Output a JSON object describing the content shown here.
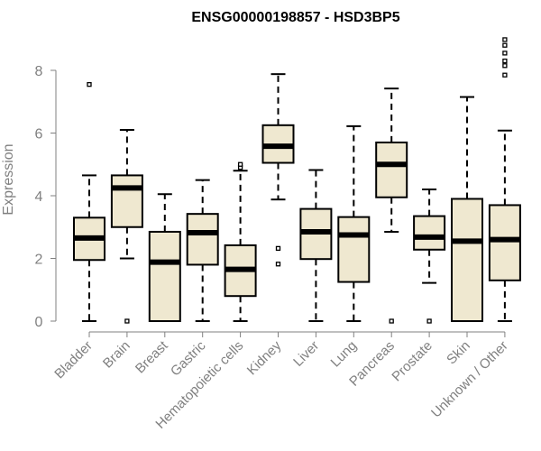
{
  "chart_data": {
    "type": "boxplot",
    "title": "ENSG00000198857 - HSD3BP5",
    "xlabel": "",
    "ylabel": "Expression",
    "ylim": [
      0,
      9
    ],
    "yticks": [
      0,
      2,
      4,
      6,
      8
    ],
    "grid": false,
    "box_fill": "#efe8d0",
    "categories": [
      "Bladder",
      "Brain",
      "Breast",
      "Gastric",
      "Hematopoietic cells",
      "Kidney",
      "Liver",
      "Lung",
      "Pancreas",
      "Prostate",
      "Skin",
      "Unknown / Other"
    ],
    "boxes": [
      {
        "name": "Bladder",
        "whisker_low": 0.0,
        "q1": 1.95,
        "median": 2.65,
        "q3": 3.3,
        "whisker_high": 4.65,
        "outliers": [
          7.55
        ]
      },
      {
        "name": "Brain",
        "whisker_low": 2.0,
        "q1": 3.0,
        "median": 4.25,
        "q3": 4.65,
        "whisker_high": 6.1,
        "outliers": [
          0.0
        ]
      },
      {
        "name": "Breast",
        "whisker_low": 0.0,
        "q1": 0.0,
        "median": 1.88,
        "q3": 2.85,
        "whisker_high": 4.05,
        "outliers": []
      },
      {
        "name": "Gastric",
        "whisker_low": 0.0,
        "q1": 1.8,
        "median": 2.82,
        "q3": 3.42,
        "whisker_high": 4.5,
        "outliers": []
      },
      {
        "name": "Hematopoietic cells",
        "whisker_low": 0.0,
        "q1": 0.8,
        "median": 1.65,
        "q3": 2.42,
        "whisker_high": 4.8,
        "outliers": [
          4.9,
          5.0
        ]
      },
      {
        "name": "Kidney",
        "whisker_low": 3.88,
        "q1": 5.05,
        "median": 5.58,
        "q3": 6.25,
        "whisker_high": 7.88,
        "outliers": [
          2.32,
          1.82
        ]
      },
      {
        "name": "Liver",
        "whisker_low": 0.0,
        "q1": 1.98,
        "median": 2.85,
        "q3": 3.58,
        "whisker_high": 4.82,
        "outliers": []
      },
      {
        "name": "Lung",
        "whisker_low": 0.0,
        "q1": 1.25,
        "median": 2.75,
        "q3": 3.32,
        "whisker_high": 6.22,
        "outliers": []
      },
      {
        "name": "Pancreas",
        "whisker_low": 2.85,
        "q1": 3.95,
        "median": 5.0,
        "q3": 5.7,
        "whisker_high": 7.42,
        "outliers": [
          0.0
        ]
      },
      {
        "name": "Prostate",
        "whisker_low": 1.22,
        "q1": 2.28,
        "median": 2.68,
        "q3": 3.35,
        "whisker_high": 4.2,
        "outliers": [
          0.0
        ]
      },
      {
        "name": "Skin",
        "whisker_low": 0.0,
        "q1": 0.0,
        "median": 2.55,
        "q3": 3.9,
        "whisker_high": 7.15,
        "outliers": []
      },
      {
        "name": "Unknown / Other",
        "whisker_low": 0.0,
        "q1": 1.3,
        "median": 2.6,
        "q3": 3.7,
        "whisker_high": 6.08,
        "outliers": [
          7.85,
          8.15,
          8.3,
          8.55,
          8.8,
          8.98
        ]
      }
    ]
  }
}
